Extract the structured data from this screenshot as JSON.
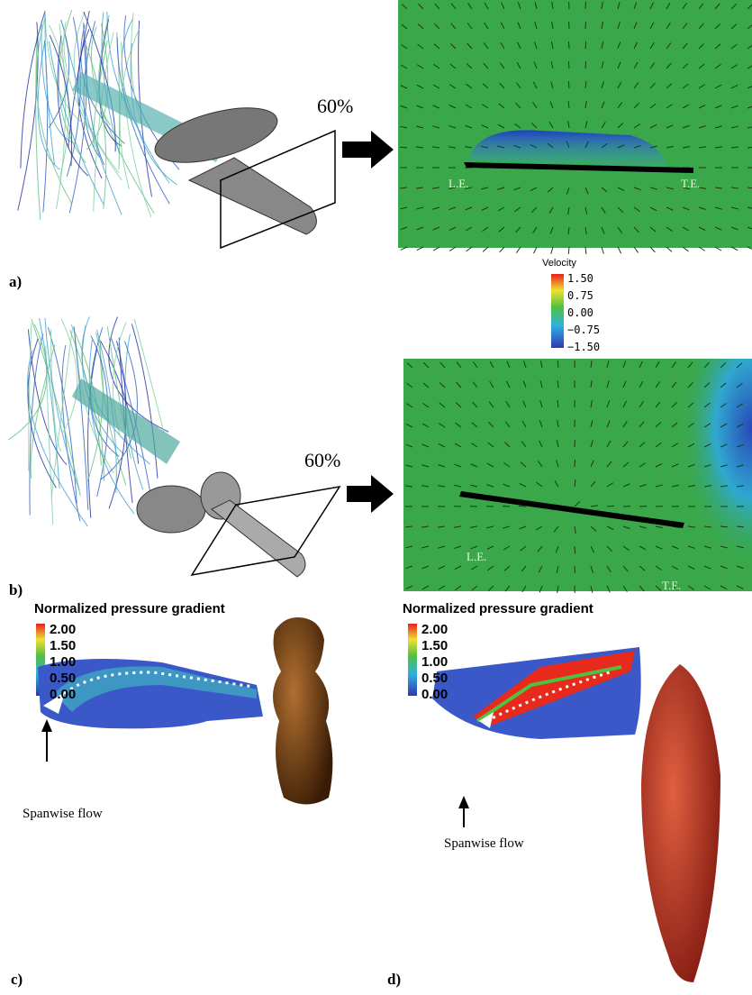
{
  "flow_panels": [
    {
      "label": "a)",
      "plane_label": "60%",
      "leading_edge": "L.E.",
      "trailing_edge": "T.E."
    },
    {
      "label": "b)",
      "plane_label": "60%",
      "leading_edge": "L.E.",
      "trailing_edge": "T.E."
    }
  ],
  "velocity_legend": {
    "title": "Velocity",
    "ticks": [
      "1.50",
      "0.75",
      "0.00",
      "−0.75",
      "−1.50"
    ]
  },
  "pressure_panels": [
    {
      "label": "c)",
      "title": "Normalized pressure gradient",
      "ticks": [
        "2.00",
        "1.50",
        "1.00",
        "0.50",
        "0.00"
      ],
      "annotation": "Spanwise flow"
    },
    {
      "label": "d)",
      "title": "Normalized pressure gradient",
      "ticks": [
        "2.00",
        "1.50",
        "1.00",
        "0.50",
        "0.00"
      ],
      "annotation": "Spanwise flow"
    }
  ]
}
